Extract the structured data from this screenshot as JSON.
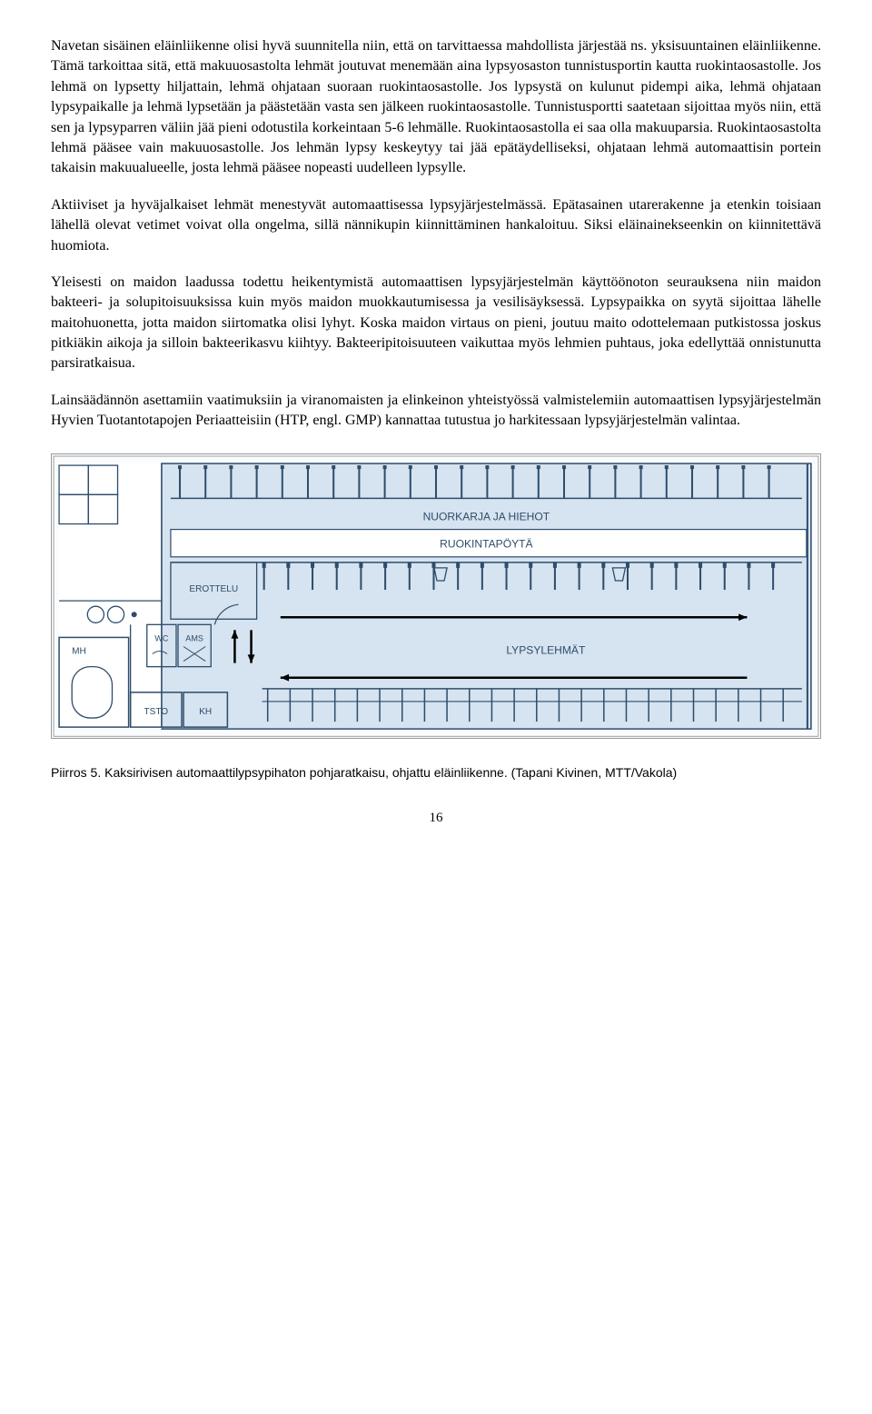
{
  "paragraphs": {
    "p1": "Navetan sisäinen eläinliikenne olisi hyvä suunnitella niin, että on tarvittaessa mahdollista järjestää ns. yksisuuntainen eläinliikenne. Tämä tarkoittaa sitä, että makuuosastolta lehmät joutuvat menemään aina lypsyosaston tunnistusportin kautta ruokintaosastolle. Jos lehmä on lypsetty hiljattain, lehmä ohjataan suoraan ruokintaosastolle. Jos lypsystä on kulunut pidempi aika, lehmä ohjataan lypsypaikalle ja lehmä lypsetään ja päästetään vasta sen jälkeen ruokintaosastolle. Tunnistusportti saatetaan sijoittaa myös niin, että sen ja lypsyparren väliin jää pieni odotustila korkeintaan 5-6 lehmälle. Ruokintaosastolla ei saa olla makuuparsia. Ruokintaosastolta lehmä pääsee vain makuuosastolle. Jos lehmän lypsy keskeytyy tai jää epätäydelliseksi, ohjataan lehmä automaattisin portein takaisin makuualueelle, josta lehmä pääsee nopeasti uudelleen lypsylle.",
    "p2": "Aktiiviset ja hyväjalkaiset lehmät menestyvät automaattisessa lypsyjärjestelmässä. Epätasainen utarerakenne ja etenkin toisiaan lähellä olevat vetimet voivat olla ongelma, sillä nännikupin kiinnittäminen hankaloituu. Siksi eläinainekseenkin on kiinnitettävä huomiota.",
    "p3": "Yleisesti on maidon laadussa todettu heikentymistä automaattisen lypsyjärjestelmän käyttöönoton seurauksena niin maidon bakteeri- ja solupitoisuuksissa kuin myös maidon muokkautumisessa ja vesilisäyksessä. Lypsypaikka on syytä sijoittaa lähelle maitohuonetta, jotta maidon siirtomatka olisi lyhyt. Koska maidon virtaus on pieni, joutuu maito odottelemaan putkistossa joskus pitkiäkin aikoja ja silloin bakteerikasvu kiihtyy. Bakteeripitoisuuteen vaikuttaa myös lehmien puhtaus, joka edellyttää onnistunutta parsiratkaisua.",
    "p4": "Lainsäädännön asettamiin vaatimuksiin ja viranomaisten ja elinkeinon yhteistyössä valmistelemiin automaattisen lypsyjärjestelmän Hyvien Tuotantotapojen Periaatteisiin (HTP, engl. GMP) kannattaa tutustua jo harkitessaan lypsyjärjestelmän valintaa."
  },
  "diagram": {
    "bg_color": "#d6e3f0",
    "line_color": "#2e4d6b",
    "stall_color": "#2e4d6b",
    "arrow_color": "#000000",
    "text_color": "#2e4d6b",
    "font_family": "Arial, Helvetica, sans-serif",
    "labels": {
      "nuorkarja": "NUORKARJA JA HIEHOT",
      "ruokintapoyto": "RUOKINTAPÖYTÄ",
      "erottelu": "EROTTELU",
      "lypsylehmat": "LYPSYLEHMÄT",
      "mh": "MH",
      "wc": "WC",
      "ams": "AMS",
      "tsto": "TSTO",
      "kh": "KH"
    }
  },
  "caption": "Piirros 5. Kaksirivisen automaattilypsypihaton pohjaratkaisu, ohjattu eläinliikenne. (Tapani Kivinen, MTT/Vakola)",
  "page_number": "16"
}
